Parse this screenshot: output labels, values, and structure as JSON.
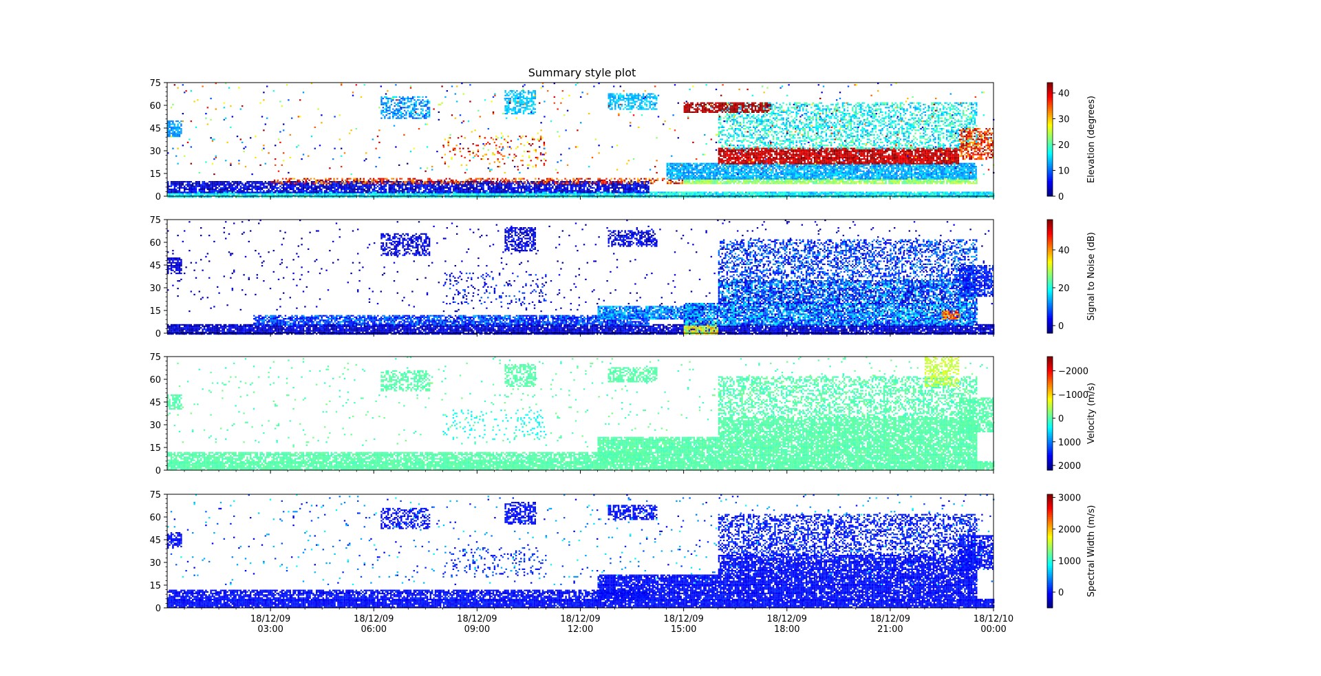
{
  "chart_data": {
    "type": "heatmap",
    "title": "Summary style plot",
    "xlabel": "",
    "x_range": [
      "18/12/09 00:00",
      "18/12/10 00:00"
    ],
    "x_ticks": [
      {
        "date": "18/12/09",
        "time": "03:00",
        "hour": 3
      },
      {
        "date": "18/12/09",
        "time": "06:00",
        "hour": 6
      },
      {
        "date": "18/12/09",
        "time": "09:00",
        "hour": 9
      },
      {
        "date": "18/12/09",
        "time": "12:00",
        "hour": 12
      },
      {
        "date": "18/12/09",
        "time": "15:00",
        "hour": 15
      },
      {
        "date": "18/12/09",
        "time": "18:00",
        "hour": 18
      },
      {
        "date": "18/12/09",
        "time": "21:00",
        "hour": 21
      },
      {
        "date": "18/12/10",
        "time": "00:00",
        "hour": 24
      }
    ],
    "y_range": [
      0,
      75
    ],
    "y_ticks": [
      "0",
      "15",
      "30",
      "45",
      "60",
      "75"
    ],
    "y_tick_values": [
      0,
      15,
      30,
      45,
      60,
      75
    ],
    "colormap": "jet",
    "panels": [
      {
        "colorbar_label": "Elevation (degrees)",
        "colorbar_range": [
          0,
          44
        ],
        "colorbar_ticks": [
          {
            "value": 0,
            "label": "0"
          },
          {
            "value": 10,
            "label": "10"
          },
          {
            "value": 20,
            "label": "20"
          },
          {
            "value": 30,
            "label": "30"
          },
          {
            "value": 40,
            "label": "40"
          }
        ],
        "bands": [
          {
            "t0": 0.0,
            "t1": 24.0,
            "g0": 0,
            "g1": 3,
            "density": 0.95,
            "v0": 12,
            "v1": 20
          },
          {
            "t0": 0.0,
            "t1": 14.0,
            "g0": 3,
            "g1": 10,
            "density": 0.8,
            "v0": 0,
            "v1": 8
          },
          {
            "t0": 3.0,
            "t1": 15.0,
            "g0": 8,
            "g1": 12,
            "density": 0.45,
            "v0": 30,
            "v1": 44
          },
          {
            "t0": 15.0,
            "t1": 23.5,
            "g0": 8,
            "g1": 12,
            "density": 0.85,
            "v0": 20,
            "v1": 26
          },
          {
            "t0": 14.5,
            "t1": 23.5,
            "g0": 12,
            "g1": 22,
            "density": 0.85,
            "v0": 10,
            "v1": 16
          },
          {
            "t0": 16.0,
            "t1": 23.0,
            "g0": 22,
            "g1": 32,
            "density": 0.85,
            "v0": 38,
            "v1": 44
          },
          {
            "t0": 16.0,
            "t1": 23.5,
            "g0": 32,
            "g1": 62,
            "density": 0.45,
            "v0": 12,
            "v1": 22
          },
          {
            "t0": 15.0,
            "t1": 17.5,
            "g0": 56,
            "g1": 62,
            "density": 0.7,
            "v0": 40,
            "v1": 44
          },
          {
            "t0": 23.0,
            "t1": 24.0,
            "g0": 25,
            "g1": 45,
            "density": 0.6,
            "v0": 30,
            "v1": 44
          },
          {
            "t0": 0.0,
            "t1": 0.4,
            "g0": 40,
            "g1": 50,
            "density": 0.7,
            "v0": 10,
            "v1": 14
          },
          {
            "t0": 6.2,
            "t1": 7.6,
            "g0": 52,
            "g1": 66,
            "density": 0.5,
            "v0": 8,
            "v1": 16
          },
          {
            "t0": 9.8,
            "t1": 10.7,
            "g0": 55,
            "g1": 70,
            "density": 0.6,
            "v0": 12,
            "v1": 16
          },
          {
            "t0": 12.8,
            "t1": 14.2,
            "g0": 58,
            "g1": 68,
            "density": 0.6,
            "v0": 12,
            "v1": 16
          },
          {
            "t0": 8.0,
            "t1": 11.0,
            "g0": 20,
            "g1": 40,
            "density": 0.12,
            "v0": 25,
            "v1": 44
          },
          {
            "t0": 0.0,
            "t1": 24.0,
            "g0": 15,
            "g1": 75,
            "density": 0.018,
            "v0": 0,
            "v1": 44
          }
        ]
      },
      {
        "colorbar_label": "Signal to Noise (dB)",
        "colorbar_range": [
          -4,
          56
        ],
        "colorbar_ticks": [
          {
            "value": 0,
            "label": "0"
          },
          {
            "value": 20,
            "label": "20"
          },
          {
            "value": 40,
            "label": "40"
          }
        ],
        "bands": [
          {
            "t0": 0.0,
            "t1": 24.0,
            "g0": 0,
            "g1": 6,
            "density": 0.9,
            "v0": -4,
            "v1": 6
          },
          {
            "t0": 2.5,
            "t1": 14.0,
            "g0": 6,
            "g1": 12,
            "density": 0.75,
            "v0": 0,
            "v1": 14
          },
          {
            "t0": 12.5,
            "t1": 15.5,
            "g0": 10,
            "g1": 18,
            "density": 0.85,
            "v0": 4,
            "v1": 18
          },
          {
            "t0": 15.0,
            "t1": 16.0,
            "g0": 0,
            "g1": 8,
            "density": 0.9,
            "v0": 24,
            "v1": 40
          },
          {
            "t0": 15.0,
            "t1": 23.5,
            "g0": 6,
            "g1": 20,
            "density": 0.85,
            "v0": 0,
            "v1": 20
          },
          {
            "t0": 16.0,
            "t1": 23.5,
            "g0": 20,
            "g1": 35,
            "density": 0.75,
            "v0": -2,
            "v1": 18
          },
          {
            "t0": 16.0,
            "t1": 23.5,
            "g0": 35,
            "g1": 62,
            "density": 0.45,
            "v0": 0,
            "v1": 14
          },
          {
            "t0": 23.0,
            "t1": 24.0,
            "g0": 25,
            "g1": 45,
            "density": 0.7,
            "v0": 0,
            "v1": 10
          },
          {
            "t0": 22.5,
            "t1": 23.0,
            "g0": 10,
            "g1": 15,
            "density": 0.8,
            "v0": 35,
            "v1": 50
          },
          {
            "t0": 0.0,
            "t1": 0.4,
            "g0": 40,
            "g1": 50,
            "density": 0.7,
            "v0": -2,
            "v1": 4
          },
          {
            "t0": 6.2,
            "t1": 7.6,
            "g0": 52,
            "g1": 66,
            "density": 0.5,
            "v0": -2,
            "v1": 6
          },
          {
            "t0": 9.8,
            "t1": 10.7,
            "g0": 55,
            "g1": 70,
            "density": 0.6,
            "v0": -2,
            "v1": 6
          },
          {
            "t0": 12.8,
            "t1": 14.2,
            "g0": 58,
            "g1": 68,
            "density": 0.6,
            "v0": -2,
            "v1": 6
          },
          {
            "t0": 8.0,
            "t1": 11.0,
            "g0": 20,
            "g1": 40,
            "density": 0.12,
            "v0": -2,
            "v1": 10
          },
          {
            "t0": 0.0,
            "t1": 24.0,
            "g0": 15,
            "g1": 75,
            "density": 0.018,
            "v0": -4,
            "v1": 4
          }
        ]
      },
      {
        "colorbar_label": "Velocity (m/s)",
        "colorbar_range": [
          2200,
          -2600
        ],
        "colorbar_ticks": [
          {
            "value": 2000,
            "label": "2000"
          },
          {
            "value": 1000,
            "label": "1000"
          },
          {
            "value": 0,
            "label": "0"
          },
          {
            "value": -1000,
            "label": "−1000"
          },
          {
            "value": -2000,
            "label": "−2000"
          }
        ],
        "bands": [
          {
            "t0": 0.0,
            "t1": 24.0,
            "g0": 0,
            "g1": 6,
            "density": 0.9,
            "v0": -80,
            "v1": 80
          },
          {
            "t0": 0.0,
            "t1": 14.0,
            "g0": 6,
            "g1": 12,
            "density": 0.75,
            "v0": -80,
            "v1": 80
          },
          {
            "t0": 12.5,
            "t1": 23.5,
            "g0": 6,
            "g1": 22,
            "density": 0.85,
            "v0": -100,
            "v1": 100
          },
          {
            "t0": 16.0,
            "t1": 23.5,
            "g0": 22,
            "g1": 35,
            "density": 0.8,
            "v0": -80,
            "v1": 80
          },
          {
            "t0": 16.0,
            "t1": 23.5,
            "g0": 35,
            "g1": 62,
            "density": 0.45,
            "v0": -150,
            "v1": 200
          },
          {
            "t0": 23.0,
            "t1": 24.0,
            "g0": 25,
            "g1": 48,
            "density": 0.7,
            "v0": -80,
            "v1": 80
          },
          {
            "t0": 0.0,
            "t1": 0.4,
            "g0": 40,
            "g1": 50,
            "density": 0.7,
            "v0": -80,
            "v1": 80
          },
          {
            "t0": 6.2,
            "t1": 7.6,
            "g0": 52,
            "g1": 66,
            "density": 0.5,
            "v0": -80,
            "v1": 80
          },
          {
            "t0": 9.8,
            "t1": 10.7,
            "g0": 55,
            "g1": 70,
            "density": 0.6,
            "v0": -80,
            "v1": 80
          },
          {
            "t0": 12.8,
            "t1": 14.2,
            "g0": 58,
            "g1": 68,
            "density": 0.6,
            "v0": -80,
            "v1": 80
          },
          {
            "t0": 8.0,
            "t1": 11.0,
            "g0": 20,
            "g1": 40,
            "density": 0.12,
            "v0": 200,
            "v1": 500
          },
          {
            "t0": 22.0,
            "t1": 23.0,
            "g0": 55,
            "g1": 75,
            "density": 0.5,
            "v0": -700,
            "v1": -400
          },
          {
            "t0": 0.0,
            "t1": 24.0,
            "g0": 15,
            "g1": 75,
            "density": 0.018,
            "v0": -200,
            "v1": 200
          }
        ]
      },
      {
        "colorbar_label": "Spectral Width (m/s)",
        "colorbar_range": [
          -500,
          3100
        ],
        "colorbar_ticks": [
          {
            "value": 0,
            "label": "0"
          },
          {
            "value": 1000,
            "label": "1000"
          },
          {
            "value": 2000,
            "label": "2000"
          },
          {
            "value": 3000,
            "label": "3000"
          }
        ],
        "bands": [
          {
            "t0": 0.0,
            "t1": 24.0,
            "g0": 0,
            "g1": 6,
            "density": 0.92,
            "v0": -150,
            "v1": 100
          },
          {
            "t0": 0.0,
            "t1": 14.0,
            "g0": 6,
            "g1": 12,
            "density": 0.75,
            "v0": -150,
            "v1": 100
          },
          {
            "t0": 12.5,
            "t1": 23.5,
            "g0": 6,
            "g1": 22,
            "density": 0.85,
            "v0": -150,
            "v1": 100
          },
          {
            "t0": 16.0,
            "t1": 23.5,
            "g0": 22,
            "g1": 35,
            "density": 0.8,
            "v0": -150,
            "v1": 100
          },
          {
            "t0": 16.0,
            "t1": 23.5,
            "g0": 35,
            "g1": 62,
            "density": 0.45,
            "v0": -150,
            "v1": 200
          },
          {
            "t0": 23.0,
            "t1": 24.0,
            "g0": 25,
            "g1": 48,
            "density": 0.7,
            "v0": -150,
            "v1": 100
          },
          {
            "t0": 0.0,
            "t1": 0.4,
            "g0": 40,
            "g1": 50,
            "density": 0.7,
            "v0": -150,
            "v1": 100
          },
          {
            "t0": 6.2,
            "t1": 7.6,
            "g0": 52,
            "g1": 66,
            "density": 0.5,
            "v0": -150,
            "v1": 100
          },
          {
            "t0": 9.8,
            "t1": 10.7,
            "g0": 55,
            "g1": 70,
            "density": 0.6,
            "v0": -150,
            "v1": 100
          },
          {
            "t0": 12.8,
            "t1": 14.2,
            "g0": 58,
            "g1": 68,
            "density": 0.6,
            "v0": -150,
            "v1": 100
          },
          {
            "t0": 8.0,
            "t1": 11.0,
            "g0": 20,
            "g1": 40,
            "density": 0.12,
            "v0": -100,
            "v1": 300
          },
          {
            "t0": 0.0,
            "t1": 24.0,
            "g0": 15,
            "g1": 75,
            "density": 0.02,
            "v0": -150,
            "v1": 900
          }
        ]
      }
    ]
  }
}
